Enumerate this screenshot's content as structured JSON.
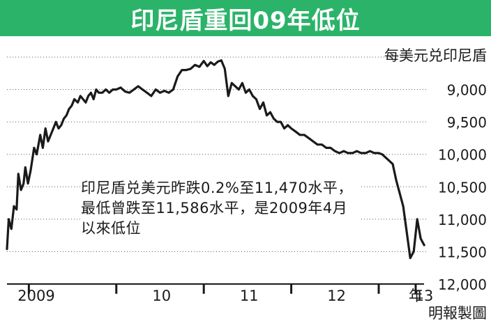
{
  "title": "印尼盾重回09年低位",
  "unit_label": "每美元兑印尼盾",
  "source": "明報製圖",
  "annotation": "印尼盾兑美元昨跌0.2%至11,470水平，最低曾跌至11,586水平，是2009年4月以來低位",
  "colors": {
    "title_bg": "#2bb36a",
    "title_text": "#ffffff",
    "line": "#1a1a1a",
    "grid": "#555555"
  },
  "chart_data": {
    "type": "line",
    "title": "印尼盾重回09年低位",
    "ylabel": "每美元兑印尼盾",
    "y_inverted": true,
    "ylim": [
      12000,
      8500
    ],
    "y_ticks": [
      {
        "value": 9000,
        "label": "9,000"
      },
      {
        "value": 9500,
        "label": "9,500"
      },
      {
        "value": 10000,
        "label": "10,000"
      },
      {
        "value": 10500,
        "label": "10,500"
      },
      {
        "value": 11000,
        "label": "11,000"
      },
      {
        "value": 11500,
        "label": "11,500"
      },
      {
        "value": 12000,
        "label": "12,000"
      }
    ],
    "x_ticks": [
      {
        "value": 2009.0,
        "label": "2009"
      },
      {
        "value": 2010.0,
        "label": "10"
      },
      {
        "value": 2011.0,
        "label": "11"
      },
      {
        "value": 2012.0,
        "label": "12"
      },
      {
        "value": 2013.0,
        "label": "13"
      }
    ],
    "x_unit_label": "年",
    "xlim": [
      2008.75,
      2013.55
    ],
    "grid": true,
    "series": [
      {
        "x": [
          2008.75,
          2008.77,
          2008.8,
          2008.83,
          2008.86,
          2008.88,
          2008.91,
          2008.94,
          2008.96,
          2008.99,
          2009.02,
          2009.06,
          2009.09,
          2009.13,
          2009.16,
          2009.19,
          2009.22,
          2009.25,
          2009.28,
          2009.31,
          2009.34,
          2009.37,
          2009.4,
          2009.43,
          2009.46,
          2009.49,
          2009.52,
          2009.56,
          2009.59,
          2009.62,
          2009.65,
          2009.68,
          2009.71,
          2009.74,
          2009.77,
          2009.8,
          2009.84,
          2009.88,
          2009.92,
          2009.96,
          2010.0,
          2010.05,
          2010.1,
          2010.15,
          2010.2,
          2010.25,
          2010.3,
          2010.35,
          2010.4,
          2010.45,
          2010.5,
          2010.55,
          2010.6,
          2010.65,
          2010.7,
          2010.75,
          2010.8,
          2010.85,
          2010.9,
          2010.95,
          2011.0,
          2011.04,
          2011.08,
          2011.12,
          2011.16,
          2011.2,
          2011.24,
          2011.28,
          2011.32,
          2011.36,
          2011.4,
          2011.44,
          2011.48,
          2011.52,
          2011.56,
          2011.6,
          2011.64,
          2011.68,
          2011.72,
          2011.76,
          2011.8,
          2011.84,
          2011.88,
          2011.92,
          2011.96,
          2012.0,
          2012.05,
          2012.1,
          2012.15,
          2012.2,
          2012.25,
          2012.3,
          2012.35,
          2012.4,
          2012.45,
          2012.5,
          2012.55,
          2012.6,
          2012.65,
          2012.7,
          2012.75,
          2012.8,
          2012.85,
          2012.9,
          2012.95,
          2013.0,
          2013.04,
          2013.08,
          2013.12,
          2013.16,
          2013.2,
          2013.24,
          2013.28,
          2013.32,
          2013.36,
          2013.4,
          2013.44,
          2013.48,
          2013.52
        ],
        "values": [
          11460,
          11000,
          11150,
          10800,
          10850,
          10300,
          10550,
          10450,
          10200,
          10450,
          10250,
          9900,
          10000,
          9700,
          9900,
          9600,
          9800,
          9700,
          9600,
          9500,
          9600,
          9550,
          9450,
          9400,
          9300,
          9250,
          9150,
          9200,
          9100,
          9150,
          9200,
          9100,
          9050,
          9150,
          9000,
          9050,
          9050,
          9000,
          9050,
          9000,
          9000,
          8970,
          9030,
          9050,
          9000,
          8950,
          9000,
          9050,
          9100,
          9000,
          9050,
          9020,
          9050,
          9000,
          8800,
          8700,
          8700,
          8680,
          8620,
          8650,
          8560,
          8640,
          8580,
          8620,
          8570,
          8550,
          8680,
          9100,
          8900,
          8950,
          9000,
          8900,
          9050,
          9000,
          9100,
          9150,
          9300,
          9200,
          9400,
          9350,
          9450,
          9500,
          9500,
          9600,
          9550,
          9600,
          9650,
          9700,
          9700,
          9750,
          9800,
          9850,
          9850,
          9900,
          9900,
          9950,
          9980,
          9950,
          9980,
          9980,
          9950,
          9980,
          9980,
          9950,
          9980,
          9980,
          10000,
          10050,
          10100,
          10150,
          10400,
          10600,
          10800,
          11200,
          11600,
          11500,
          11000,
          11300,
          11400
        ]
      }
    ]
  }
}
